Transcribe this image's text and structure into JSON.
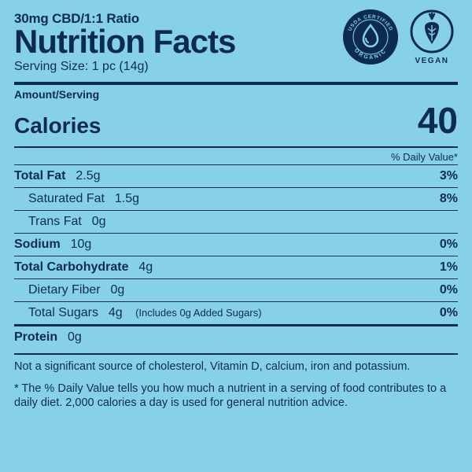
{
  "colors": {
    "bg": "#87d1e6",
    "ink": "#0b2b52"
  },
  "header": {
    "ratio": "30mg CBD/1:1 Ratio",
    "title": "Nutrition Facts",
    "serving": "Serving Size: 1 pc (14g)"
  },
  "badges": {
    "organic_top": "USDA CERTIFIED",
    "organic_bottom": "ORGANIC",
    "vegan": "VEGAN"
  },
  "calories": {
    "amount_label": "Amount/Serving",
    "label": "Calories",
    "value": "40"
  },
  "dv_header": "% Daily Value*",
  "rows": [
    {
      "label": "Total Fat",
      "amount": "2.5g",
      "dv": "3%",
      "bold": true,
      "indent": 0
    },
    {
      "label": "Saturated Fat",
      "amount": "1.5g",
      "dv": "8%",
      "bold": false,
      "indent": 1
    },
    {
      "label": "Trans Fat",
      "amount": "0g",
      "dv": "",
      "bold": false,
      "indent": 1
    },
    {
      "label": "Sodium",
      "amount": "10g",
      "dv": "0%",
      "bold": true,
      "indent": 0
    },
    {
      "label": "Total Carbohydrate",
      "amount": "4g",
      "dv": "1%",
      "bold": true,
      "indent": 0
    },
    {
      "label": "Dietary Fiber",
      "amount": "0g",
      "dv": "0%",
      "bold": false,
      "indent": 1
    },
    {
      "label": "Total Sugars",
      "amount": "4g",
      "dv": "0%",
      "bold": false,
      "indent": 1,
      "note": "(Includes 0g Added Sugars)"
    },
    {
      "label": "Protein",
      "amount": "0g",
      "dv": "",
      "bold": true,
      "indent": 0,
      "heavy": true
    }
  ],
  "footnote1": "Not a significant source of cholesterol, Vitamin D, calcium, iron and potassium.",
  "footnote2": "* The % Daily Value tells you how much a nutrient in a serving of food contributes to a daily diet. 2,000 calories a day is used for general nutrition advice."
}
